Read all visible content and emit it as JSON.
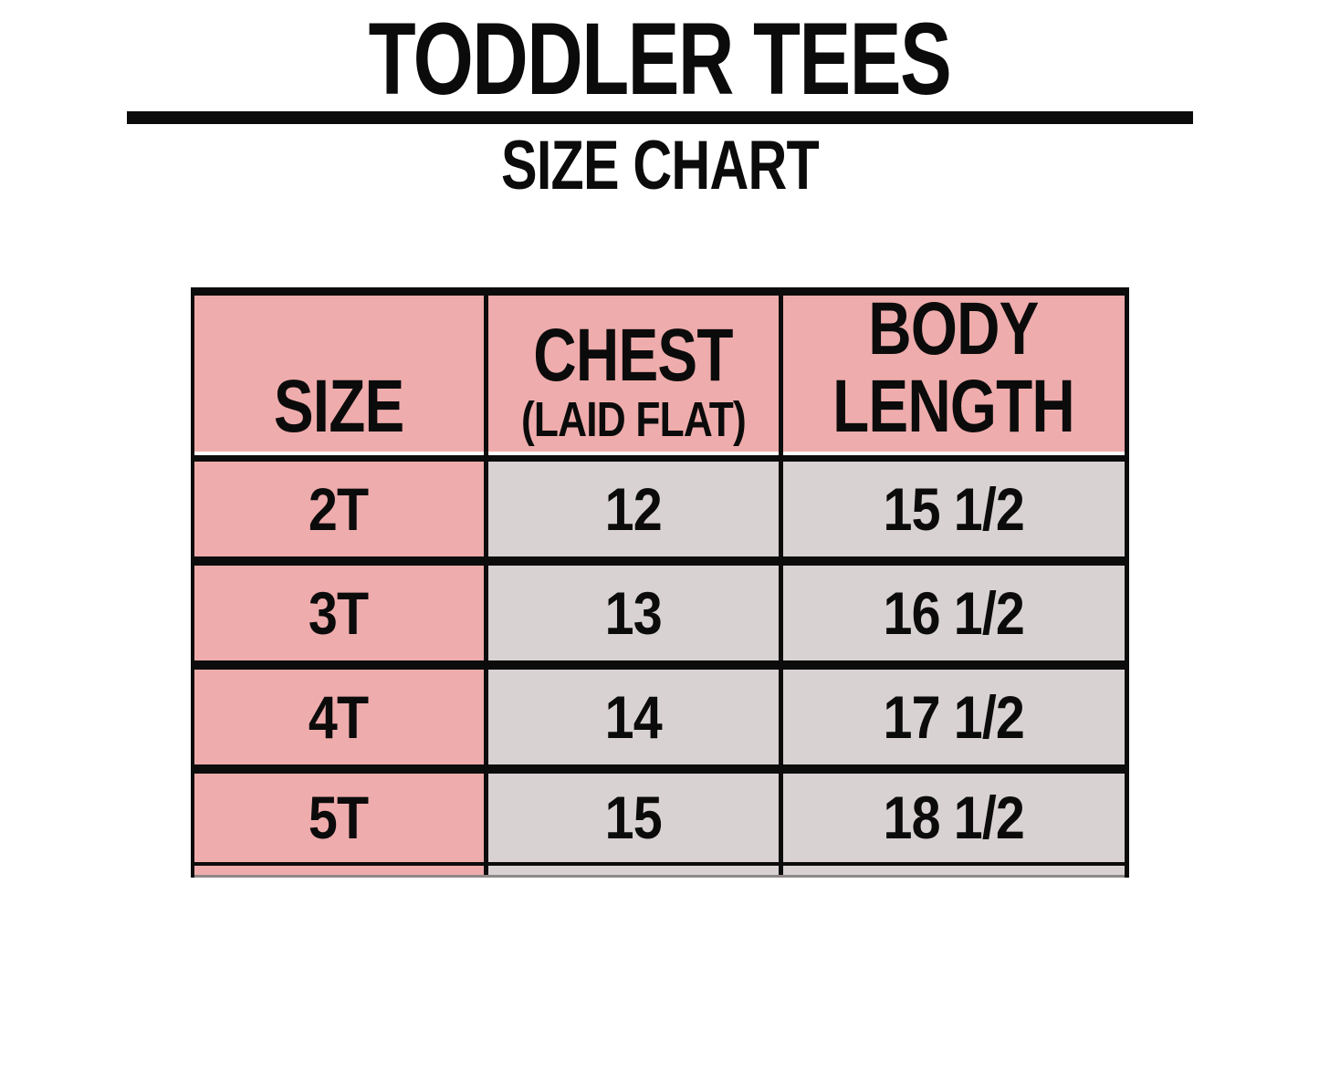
{
  "header": {
    "title": "TODDLER TEES",
    "subtitle": "SIZE CHART"
  },
  "table": {
    "columns": [
      {
        "label": "SIZE"
      },
      {
        "label": "CHEST",
        "sublabel": "(LAID FLAT)"
      },
      {
        "label": "BODY",
        "label2": "LENGTH"
      }
    ],
    "rows": [
      {
        "size": "2T",
        "chest": "12",
        "body_length": "15 1/2"
      },
      {
        "size": "3T",
        "chest": "13",
        "body_length": "16 1/2"
      },
      {
        "size": "4T",
        "chest": "14",
        "body_length": "17 1/2"
      },
      {
        "size": "5T",
        "chest": "15",
        "body_length": "18 1/2"
      }
    ],
    "colors": {
      "header_bg": "#efacac",
      "size_column_bg": "#efacac",
      "value_cell_bg": "#d9d2d2",
      "border": "#0d0c0c",
      "title_rule": "#0c0b0b"
    }
  }
}
